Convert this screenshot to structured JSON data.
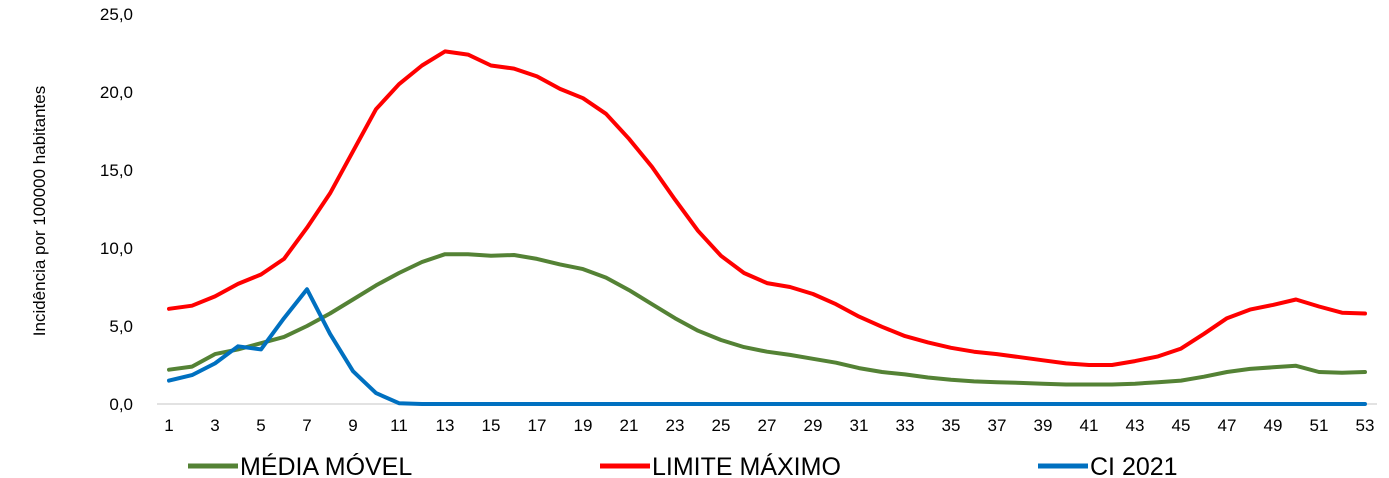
{
  "chart_data": {
    "type": "line",
    "title": "",
    "xlabel": "",
    "ylabel": "Incidência por 100000 habitantes",
    "ylim": [
      0,
      25
    ],
    "y_ticks": [
      "0,0",
      "5,0",
      "10,0",
      "15,0",
      "20,0",
      "25,0"
    ],
    "x": [
      1,
      2,
      3,
      4,
      5,
      6,
      7,
      8,
      9,
      10,
      11,
      12,
      13,
      14,
      15,
      16,
      17,
      18,
      19,
      20,
      21,
      22,
      23,
      24,
      25,
      26,
      27,
      28,
      29,
      30,
      31,
      32,
      33,
      34,
      35,
      36,
      37,
      38,
      39,
      40,
      41,
      42,
      43,
      44,
      45,
      46,
      47,
      48,
      49,
      50,
      51,
      52,
      53
    ],
    "x_tick_labels": [
      "1",
      "3",
      "5",
      "7",
      "9",
      "11",
      "13",
      "15",
      "17",
      "19",
      "21",
      "23",
      "25",
      "27",
      "29",
      "31",
      "33",
      "35",
      "37",
      "39",
      "41",
      "43",
      "45",
      "47",
      "49",
      "51",
      "53"
    ],
    "grid": false,
    "legend_position": "bottom",
    "series": [
      {
        "name": "MÉDIA MÓVEL",
        "color": "#548235",
        "values": [
          2.2,
          2.4,
          3.2,
          3.5,
          3.9,
          4.3,
          5.0,
          5.8,
          6.7,
          7.6,
          8.4,
          9.1,
          9.6,
          9.6,
          9.5,
          9.55,
          9.3,
          8.95,
          8.65,
          8.1,
          7.3,
          6.4,
          5.5,
          4.7,
          4.1,
          3.65,
          3.35,
          3.15,
          2.9,
          2.65,
          2.3,
          2.05,
          1.9,
          1.7,
          1.55,
          1.45,
          1.4,
          1.35,
          1.3,
          1.25,
          1.25,
          1.25,
          1.3,
          1.4,
          1.5,
          1.75,
          2.05,
          2.25,
          2.35,
          2.45,
          2.05,
          2.0,
          2.05
        ]
      },
      {
        "name": "LIMITE MÁXIMO",
        "color": "#ff0000",
        "values": [
          6.1,
          6.3,
          6.9,
          7.7,
          8.3,
          9.3,
          11.3,
          13.5,
          16.2,
          18.9,
          20.5,
          21.7,
          22.6,
          22.4,
          21.7,
          21.5,
          21.0,
          20.2,
          19.6,
          18.6,
          17.0,
          15.2,
          13.1,
          11.1,
          9.5,
          8.4,
          7.75,
          7.5,
          7.05,
          6.4,
          5.6,
          4.95,
          4.35,
          3.95,
          3.6,
          3.35,
          3.2,
          3.0,
          2.8,
          2.6,
          2.5,
          2.5,
          2.75,
          3.05,
          3.55,
          4.5,
          5.5,
          6.05,
          6.35,
          6.7,
          6.25,
          5.85,
          5.8
        ]
      },
      {
        "name": "CI 2021",
        "color": "#0070c0",
        "values": [
          1.5,
          1.85,
          2.6,
          3.7,
          3.5,
          5.5,
          7.35,
          4.5,
          2.1,
          0.7,
          0.05,
          0,
          0,
          0,
          0,
          0,
          0,
          0,
          0,
          0,
          0,
          0,
          0,
          0,
          0,
          0,
          0,
          0,
          0,
          0,
          0,
          0,
          0,
          0,
          0,
          0,
          0,
          0,
          0,
          0,
          0,
          0,
          0,
          0,
          0,
          0,
          0,
          0,
          0,
          0,
          0,
          0,
          0
        ]
      }
    ]
  }
}
